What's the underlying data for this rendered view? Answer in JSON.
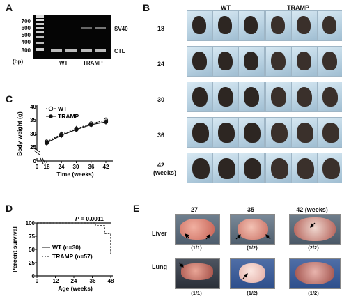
{
  "panelA": {
    "label": "A",
    "ladder": [
      "700",
      "600",
      "500",
      "400",
      "300"
    ],
    "bp_unit": "(bp)",
    "band_labels": [
      "SV40",
      "CTL"
    ],
    "lane_labels": [
      "WT",
      "TRAMP"
    ]
  },
  "panelB": {
    "label": "B",
    "group_labels": [
      "WT",
      "TRAMP"
    ],
    "row_labels": [
      "18",
      "24",
      "30",
      "36",
      "42"
    ],
    "row_unit": "(weeks)"
  },
  "panelC": {
    "label": "C",
    "ylabel": "Body weight (g)",
    "xlabel": "Time (weeks)",
    "yticks": [
      "0",
      "25",
      "30",
      "35",
      "40"
    ],
    "xticks": [
      "0",
      "18",
      "24",
      "30",
      "36",
      "42"
    ],
    "legend": [
      "WT",
      "TRAMP"
    ]
  },
  "panelD": {
    "label": "D",
    "ylabel": "Percent survival",
    "xlabel": "Age (weeks)",
    "yticks": [
      "0",
      "25",
      "50",
      "75",
      "100"
    ],
    "xticks": [
      "0",
      "12",
      "24",
      "36",
      "48"
    ],
    "legend": [
      "WT (n=30)",
      "TRAMP (n=57)"
    ],
    "pvalue_p": "P",
    "pvalue_rest": " = 0.0011"
  },
  "panelE": {
    "label": "E",
    "col_labels": [
      "27",
      "35",
      "42 (weeks)"
    ],
    "row_labels": [
      "Liver",
      "Lung"
    ],
    "liver_fractions": [
      "(1/1)",
      "(1/2)",
      "(2/2)"
    ],
    "lung_fractions": [
      "(1/1)",
      "(1/2)",
      "(1/2)"
    ]
  },
  "chart_data": [
    {
      "type": "line",
      "panel": "C",
      "x": [
        18,
        24,
        30,
        36,
        42
      ],
      "series": [
        {
          "name": "WT",
          "values": [
            27.6,
            30.2,
            32.2,
            34.0,
            35.2
          ]
        },
        {
          "name": "TRAMP",
          "values": [
            27.2,
            29.9,
            31.9,
            33.6,
            34.6
          ]
        }
      ],
      "xlabel": "Time (weeks)",
      "ylabel": "Body weight (g)",
      "xlim": [
        0,
        42
      ],
      "ylim": [
        20,
        40
      ],
      "axis_break": true
    },
    {
      "type": "line",
      "panel": "D",
      "series": [
        {
          "name": "WT (n=30)",
          "x": [
            0,
            48
          ],
          "values": [
            100,
            100
          ]
        },
        {
          "name": "TRAMP (n=57)",
          "x": [
            0,
            38,
            38,
            44,
            44,
            48,
            48
          ],
          "values": [
            100,
            100,
            95,
            95,
            80,
            80,
            40
          ]
        }
      ],
      "xlabel": "Age (weeks)",
      "ylabel": "Percent survival",
      "xlim": [
        0,
        48
      ],
      "ylim": [
        0,
        100
      ],
      "annotation": "P = 0.0011"
    }
  ]
}
